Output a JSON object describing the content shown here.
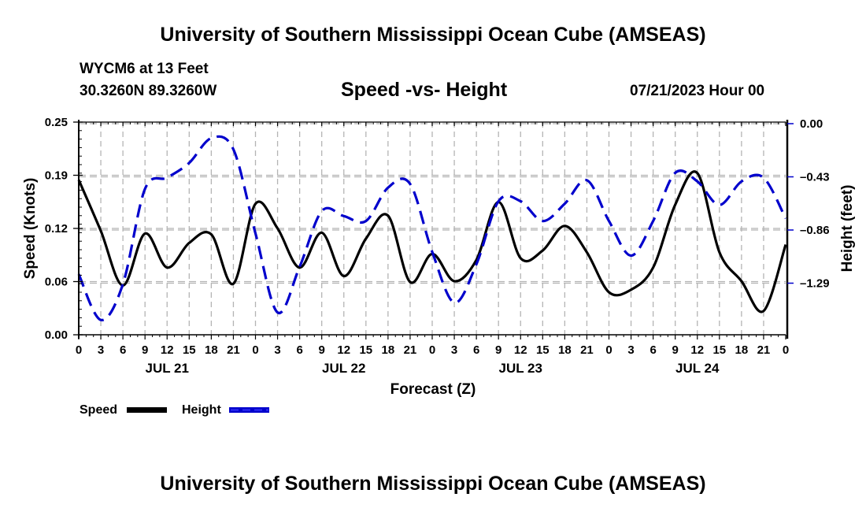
{
  "header": {
    "title": "University of Southern Mississippi Ocean Cube (AMSEAS)",
    "station": "WYCM6 at 13 Feet",
    "coords": "30.3260N  89.3260W",
    "datetime": "07/21/2023 Hour 00",
    "footer_title": "University of Southern Mississippi Ocean Cube (AMSEAS)"
  },
  "colors": {
    "speed": "#000000",
    "height": "#0000cc",
    "grid": "#b4b4b4"
  },
  "chart_data": {
    "type": "line",
    "title": "Speed -vs- Height",
    "xlabel": "Forecast (Z)",
    "ylabel": "Speed (Knots)",
    "y2label": "Height (feet)",
    "grid": true,
    "legend_position": "bottom-left",
    "x_hours": [
      0,
      3,
      6,
      9,
      12,
      15,
      18,
      21,
      24,
      27,
      30,
      33,
      36,
      39,
      42,
      45,
      48,
      51,
      54,
      57,
      60,
      63,
      66,
      69,
      72,
      75,
      78,
      81,
      84,
      87,
      90,
      93,
      96
    ],
    "x_tick_labels": [
      "0",
      "3",
      "6",
      "9",
      "12",
      "15",
      "18",
      "21",
      "0",
      "3",
      "6",
      "9",
      "12",
      "15",
      "18",
      "21",
      "0",
      "3",
      "6",
      "9",
      "12",
      "15",
      "18",
      "21",
      "0",
      "3",
      "6",
      "9",
      "12",
      "15",
      "18",
      "21",
      "0"
    ],
    "day_labels": [
      {
        "label": "JUL 21",
        "center_hour": 12
      },
      {
        "label": "JUL 22",
        "center_hour": 36
      },
      {
        "label": "JUL 23",
        "center_hour": 60
      },
      {
        "label": "JUL 24",
        "center_hour": 84
      }
    ],
    "xlim": [
      0,
      96
    ],
    "ylim": [
      0,
      0.25
    ],
    "y_ticks": [
      0.0,
      0.0625,
      0.125,
      0.1875,
      0.25
    ],
    "y_tick_labels": [
      "0.00",
      "0.06",
      "0.12",
      "0.19",
      "0.25"
    ],
    "y2lim": [
      -1.72,
      0
    ],
    "y2_ticks": [
      0.0,
      -0.43,
      -0.86,
      -1.29
    ],
    "y2_tick_labels": [
      "0.00",
      "-0.43",
      "-0.86",
      "-1.29"
    ],
    "series": [
      {
        "name": "Speed",
        "axis": "left",
        "style": "solid",
        "values": [
          0.182,
          0.122,
          0.058,
          0.119,
          0.079,
          0.108,
          0.118,
          0.06,
          0.154,
          0.125,
          0.079,
          0.12,
          0.069,
          0.113,
          0.14,
          0.062,
          0.095,
          0.063,
          0.088,
          0.156,
          0.09,
          0.099,
          0.128,
          0.097,
          0.05,
          0.053,
          0.079,
          0.153,
          0.19,
          0.097,
          0.063,
          0.028,
          0.106
        ]
      },
      {
        "name": "Height",
        "axis": "right",
        "style": "dashed",
        "values": [
          -1.23,
          -1.6,
          -1.31,
          -0.54,
          -0.45,
          -0.33,
          -0.13,
          -0.22,
          -0.9,
          -1.54,
          -1.17,
          -0.72,
          -0.76,
          -0.8,
          -0.53,
          -0.5,
          -1.05,
          -1.46,
          -1.15,
          -0.64,
          -0.64,
          -0.8,
          -0.66,
          -0.47,
          -0.8,
          -1.08,
          -0.8,
          -0.41,
          -0.48,
          -0.67,
          -0.48,
          -0.45,
          -0.78
        ]
      }
    ]
  },
  "legend": [
    {
      "label": "Speed"
    },
    {
      "label": "Height"
    }
  ]
}
